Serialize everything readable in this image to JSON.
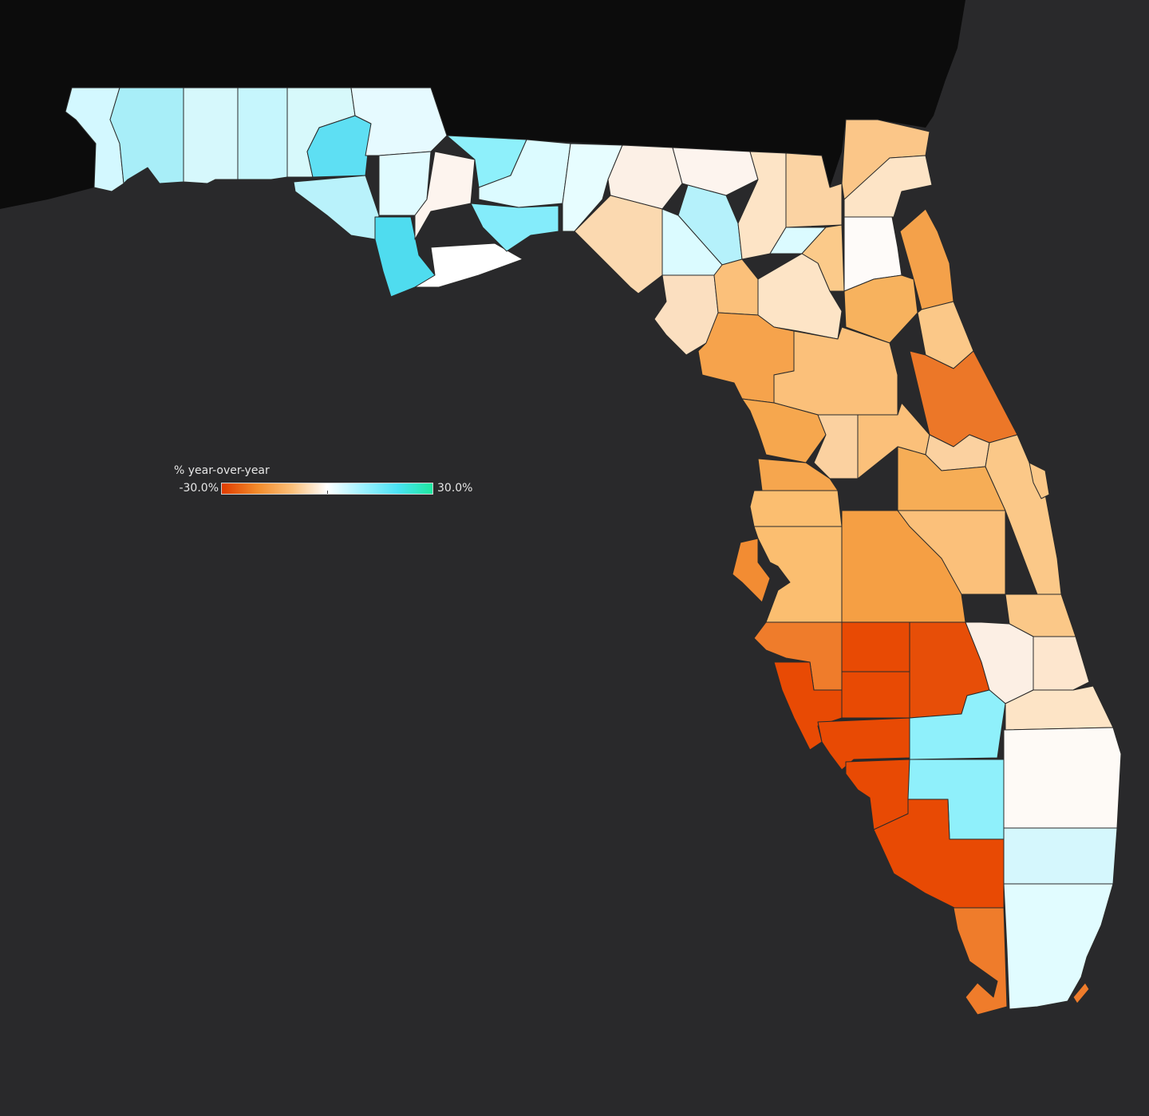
{
  "legend": {
    "title": "% year-over-year",
    "min_label": "-30.0%",
    "max_label": "30.0%",
    "min_value": -30,
    "max_value": 30,
    "gradient_stops": [
      "#e03c00",
      "#f28a2a",
      "#fbc07a",
      "#ffffff",
      "#9ff2ff",
      "#4be3f5",
      "#1ee8a0"
    ]
  },
  "colors": {
    "background": "#29292b",
    "land": "#0c0c0c",
    "border": "#2a2a2a"
  }
}
